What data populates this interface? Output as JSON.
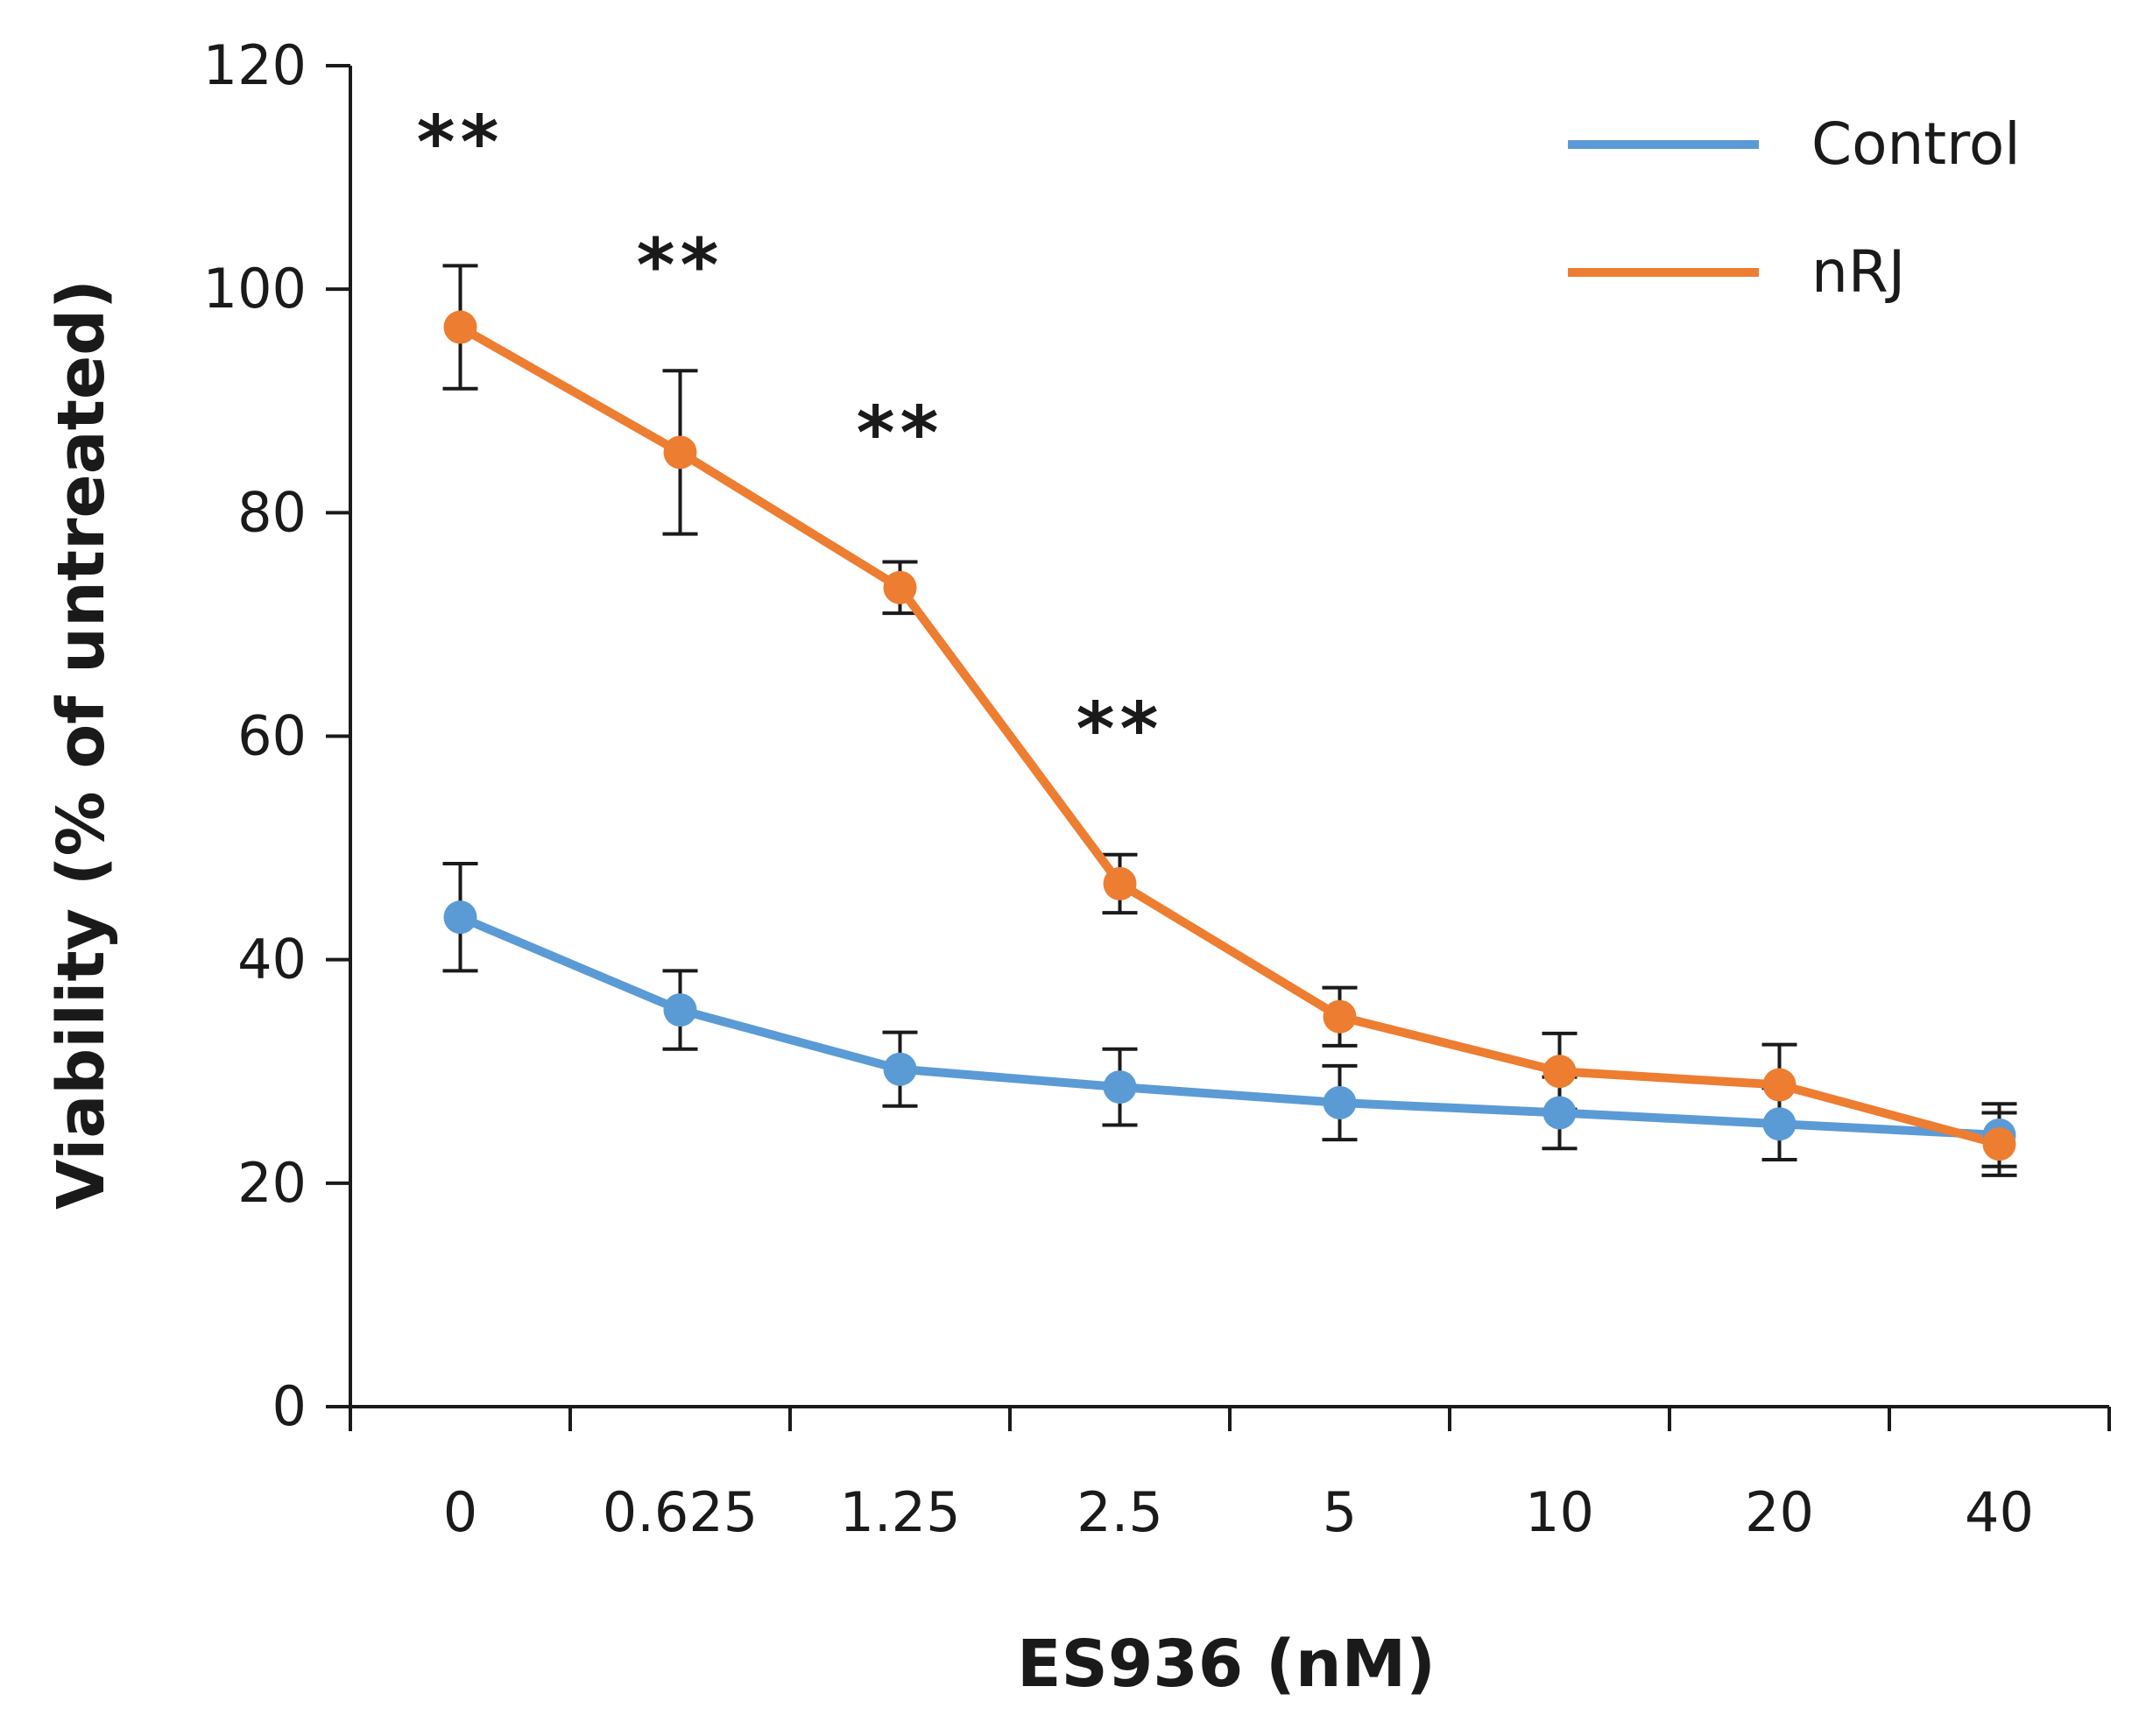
{
  "chart_data": {
    "type": "line",
    "title": "",
    "xlabel": "ES936 (nM)",
    "ylabel": "Viability (% of untreated)",
    "categories": [
      "0",
      "0.625",
      "1.25",
      "2.5",
      "5",
      "10",
      "20",
      "40"
    ],
    "ylim": [
      0,
      120
    ],
    "yticks": [
      "0",
      "20",
      "40",
      "60",
      "80",
      "100",
      "120"
    ],
    "grid": false,
    "legend_position": "top-right",
    "series": [
      {
        "name": "Control",
        "color": "#5B9BD5",
        "values": [
          43.8,
          35.5,
          30.2,
          28.6,
          27.2,
          26.3,
          25.3,
          24.3
        ],
        "errors": [
          4.8,
          3.5,
          3.3,
          3.4,
          3.3,
          3.2,
          3.2,
          2.8
        ]
      },
      {
        "name": "nRJ",
        "color": "#ED7D31",
        "values": [
          96.6,
          85.4,
          73.3,
          46.8,
          34.9,
          30.0,
          28.8,
          23.5
        ],
        "errors": [
          5.5,
          7.3,
          2.3,
          2.6,
          2.6,
          3.4,
          3.6,
          2.8
        ]
      }
    ],
    "annotations": [
      {
        "category": "0",
        "y": 114,
        "text": "**"
      },
      {
        "category": "0.625",
        "y": 103,
        "text": "**"
      },
      {
        "category": "1.25",
        "y": 88,
        "text": "**"
      },
      {
        "category": "2.5",
        "y": 61.5,
        "text": "**"
      }
    ]
  }
}
